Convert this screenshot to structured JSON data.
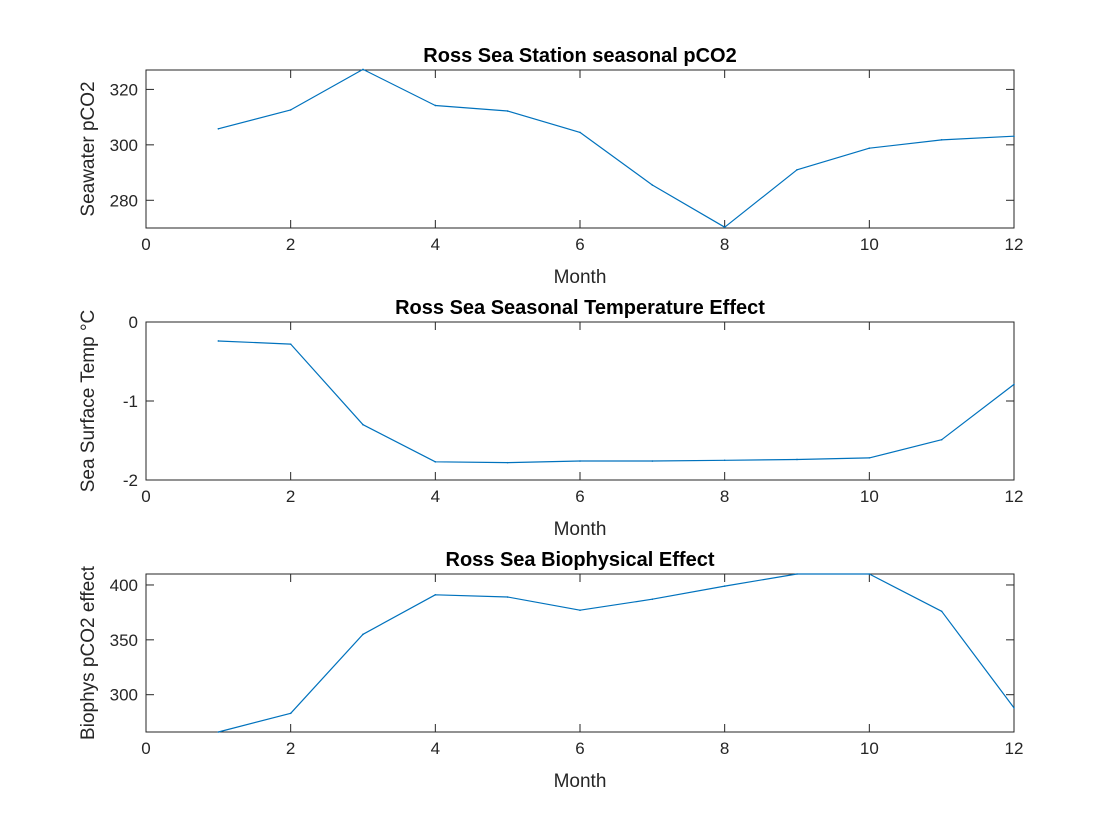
{
  "chart_data": [
    {
      "type": "line",
      "title": "Ross Sea Station seasonal pCO2",
      "xlabel": "Month",
      "ylabel": "Seawater pCO2",
      "xlim": [
        0,
        12
      ],
      "ylim": [
        270,
        327
      ],
      "xticks": [
        0,
        2,
        4,
        6,
        8,
        10,
        12
      ],
      "yticks": [
        280,
        300,
        320
      ],
      "grid": false,
      "color": "#0072BD",
      "x": [
        1,
        2,
        3,
        4,
        5,
        6,
        7,
        8,
        9,
        10,
        11,
        12
      ],
      "y": [
        305.8,
        312.6,
        327.2,
        314.2,
        312.2,
        304.5,
        285.5,
        270.3,
        291.0,
        298.8,
        301.8,
        303.1
      ]
    },
    {
      "type": "line",
      "title": "Ross Sea Seasonal Temperature Effect",
      "xlabel": "Month",
      "ylabel": "Sea Surface Temp °C",
      "xlim": [
        0,
        12
      ],
      "ylim": [
        -2,
        0
      ],
      "xticks": [
        0,
        2,
        4,
        6,
        8,
        10,
        12
      ],
      "yticks": [
        -2,
        -1,
        0
      ],
      "grid": false,
      "color": "#0072BD",
      "x": [
        1,
        2,
        3,
        4,
        5,
        6,
        7,
        8,
        9,
        10,
        11,
        12
      ],
      "y": [
        -0.24,
        -0.28,
        -1.3,
        -1.77,
        -1.78,
        -1.76,
        -1.76,
        -1.75,
        -1.74,
        -1.72,
        -1.49,
        -0.79
      ]
    },
    {
      "type": "line",
      "title": "Ross Sea Biophysical Effect",
      "xlabel": "Month",
      "ylabel": "Biophys pCO2 effect",
      "xlim": [
        0,
        12
      ],
      "ylim": [
        266,
        410
      ],
      "xticks": [
        0,
        2,
        4,
        6,
        8,
        10,
        12
      ],
      "yticks": [
        300,
        350,
        400
      ],
      "grid": false,
      "color": "#0072BD",
      "x": [
        1,
        2,
        3,
        4,
        5,
        6,
        7,
        8,
        9,
        10,
        11,
        12
      ],
      "y": [
        266,
        283,
        355,
        391,
        389,
        377,
        387,
        399,
        410,
        410,
        376,
        288
      ]
    }
  ]
}
